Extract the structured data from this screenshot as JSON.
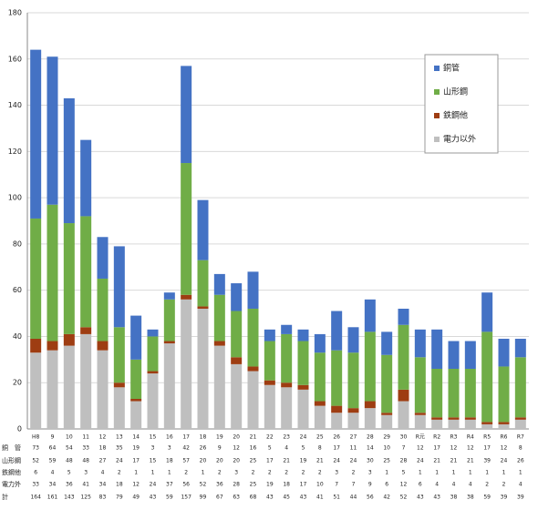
{
  "chart_data": {
    "type": "bar",
    "stacked": true,
    "categories": [
      "H8",
      "9",
      "10",
      "11",
      "12",
      "13",
      "14",
      "15",
      "16",
      "17",
      "18",
      "19",
      "20",
      "21",
      "22",
      "23",
      "24",
      "25",
      "26",
      "27",
      "28",
      "29",
      "30",
      "R元",
      "R2",
      "R3",
      "R4",
      "R5",
      "R6",
      "R7"
    ],
    "series": [
      {
        "name": "電力以外",
        "color": "#bfbfbf",
        "values": [
          33,
          34,
          36,
          41,
          34,
          18,
          12,
          24,
          37,
          56,
          52,
          36,
          28,
          25,
          19,
          18,
          17,
          10,
          7,
          7,
          9,
          6,
          12,
          6,
          4,
          4,
          4,
          2,
          2,
          4
        ]
      },
      {
        "name": "鉄鋼他",
        "color": "#9e3d12",
        "values": [
          6,
          4,
          5,
          3,
          4,
          2,
          1,
          1,
          1,
          2,
          1,
          2,
          3,
          2,
          2,
          2,
          2,
          2,
          3,
          2,
          3,
          1,
          5,
          1,
          1,
          1,
          1,
          1,
          1,
          1
        ]
      },
      {
        "name": "山形鋼",
        "color": "#70ad47",
        "values": [
          52,
          59,
          48,
          48,
          27,
          24,
          17,
          15,
          18,
          57,
          20,
          20,
          20,
          25,
          17,
          21,
          19,
          21,
          24,
          24,
          30,
          25,
          28,
          24,
          21,
          21,
          21,
          39,
          24,
          26
        ]
      },
      {
        "name": "銅管",
        "color": "#4472c4",
        "values": [
          73,
          64,
          54,
          33,
          18,
          35,
          19,
          3,
          3,
          42,
          26,
          9,
          12,
          16,
          5,
          4,
          5,
          8,
          17,
          11,
          14,
          10,
          7,
          12,
          17,
          12,
          12,
          17,
          12,
          8
        ]
      }
    ],
    "table_row_labels": [
      "銅　管",
      "山形鋼",
      "鉄鋼他",
      "電力外",
      "計"
    ],
    "totals": [
      164,
      161,
      143,
      125,
      83,
      79,
      49,
      43,
      59,
      157,
      99,
      67,
      63,
      68,
      43,
      45,
      43,
      41,
      51,
      44,
      56,
      42,
      52,
      43,
      43,
      38,
      38,
      59,
      39,
      39
    ],
    "ylim": [
      0,
      180
    ],
    "yticks": [
      0,
      20,
      40,
      60,
      80,
      100,
      120,
      140,
      160,
      180
    ],
    "grid": true
  }
}
